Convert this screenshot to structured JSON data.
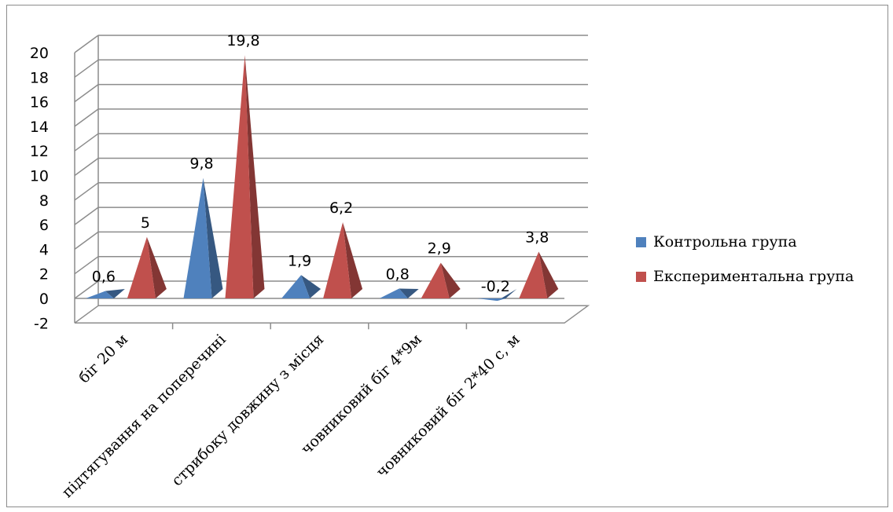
{
  "chart_data": {
    "type": "bar",
    "title": "",
    "xlabel": "",
    "ylabel": "",
    "ylim": [
      -2,
      20
    ],
    "yticks": [
      -2,
      0,
      2,
      4,
      6,
      8,
      10,
      12,
      14,
      16,
      18,
      20
    ],
    "ytick_labels": [
      "-2",
      "0",
      "2",
      "4",
      "6",
      "8",
      "10",
      "12",
      "14",
      "16",
      "18",
      "20"
    ],
    "grid": true,
    "legend_position": "right",
    "categories": [
      "біг 20 м",
      "підтягування на поперечині",
      "стрибоку довжину з місця",
      "човниковий біг 4*9м",
      "човниковий біг 2*40 с, м"
    ],
    "series": [
      {
        "name": "Контрольна група",
        "color": "#4F81BD",
        "values": [
          0.6,
          9.8,
          1.9,
          0.8,
          -0.2
        ],
        "labels": [
          "0,6",
          "9,8",
          "1,9",
          "0,8",
          "-0,2"
        ]
      },
      {
        "name": "Експериментальна група",
        "color": "#C0504D",
        "values": [
          5,
          19.8,
          6.2,
          2.9,
          3.8
        ],
        "labels": [
          "5",
          "19,8",
          "6,2",
          "2,9",
          "3,8"
        ]
      }
    ]
  }
}
